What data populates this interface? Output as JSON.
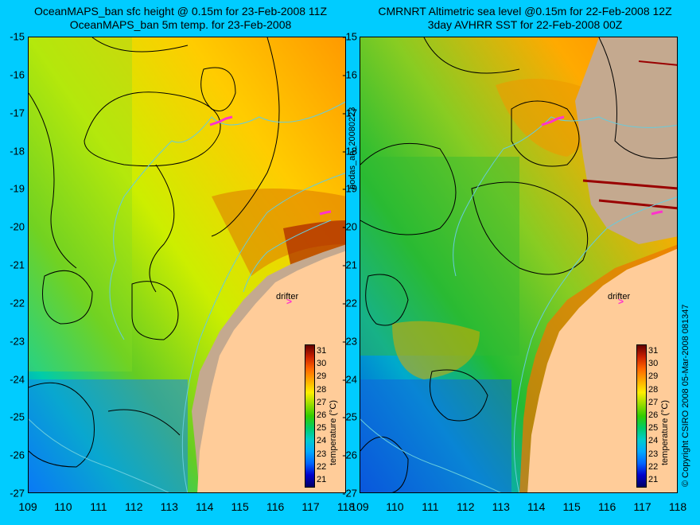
{
  "left_panel": {
    "title_line1": "OceanMAPS_ban sfc height @ 0.15m for 23-Feb-2008 11Z",
    "title_line2": "OceanMAPS_ban 5m temp. for 23-Feb-2008",
    "drifter_label": "drifter"
  },
  "right_panel": {
    "title_line1": "CMRNRT Altimetric sea level  @0.15m  for 22-Feb-2008 12Z",
    "title_line2": "3day AVHRR SST for 22-Feb-2008 00Z",
    "drifter_label": "drifter"
  },
  "axes": {
    "lat_ticks": [
      "-15",
      "-16",
      "-17",
      "-18",
      "-19",
      "-20",
      "-21",
      "-22",
      "-23",
      "-24",
      "-25",
      "-26",
      "-27"
    ],
    "lon_ticks": [
      "109",
      "110",
      "111",
      "112",
      "113",
      "114",
      "115",
      "116",
      "117",
      "118"
    ],
    "lat_range": [
      -27,
      -15
    ],
    "lon_range": [
      109,
      118
    ]
  },
  "colorbar": {
    "label": "temperature (°C)",
    "ticks": [
      "31",
      "30",
      "29",
      "28",
      "27",
      "26",
      "25",
      "24",
      "23",
      "22",
      "21"
    ],
    "range": [
      20.5,
      31.5
    ],
    "colors": [
      "#000066",
      "#0000cc",
      "#0066ff",
      "#00aaff",
      "#00cccc",
      "#00cc66",
      "#33cc00",
      "#99dd00",
      "#ffee00",
      "#ffaa00",
      "#ff6600",
      "#cc2200",
      "#660000"
    ]
  },
  "side_labels": {
    "middle": "bodas_an_20080223",
    "right": "© Copyright CSIRO 2008   05-Mar-2008 081347"
  },
  "colors": {
    "background": "#00ccff",
    "land": "#ffcc99",
    "bathymetry": "#66ccdd",
    "sst_contour": "#000000",
    "drifter": "#ff33cc",
    "no_data": "#c4a98f"
  }
}
